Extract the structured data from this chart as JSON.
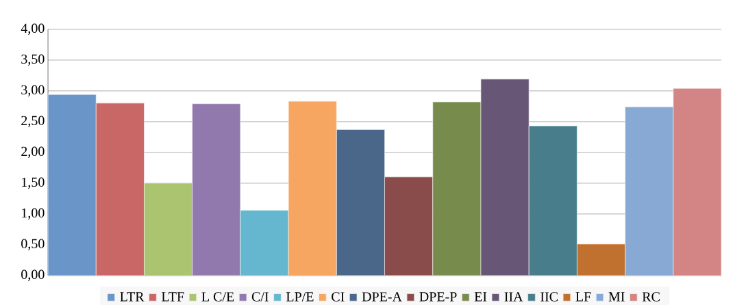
{
  "chart_data": {
    "type": "bar",
    "categories": [
      null
    ],
    "series": [
      {
        "name": "LTR",
        "color": "#6a95c8",
        "values": [
          2.94
        ]
      },
      {
        "name": "LTF",
        "color": "#c96767",
        "values": [
          2.8
        ]
      },
      {
        "name": "L C/E",
        "color": "#abc470",
        "values": [
          1.5
        ]
      },
      {
        "name": "C/I",
        "color": "#9279ad",
        "values": [
          2.79
        ]
      },
      {
        "name": "LP/E",
        "color": "#64b7cf",
        "values": [
          1.06
        ]
      },
      {
        "name": "CI",
        "color": "#f7a662",
        "values": [
          2.83
        ]
      },
      {
        "name": "DPE-A",
        "color": "#4a6689",
        "values": [
          2.37
        ]
      },
      {
        "name": "DPE-P",
        "color": "#8a4b4b",
        "values": [
          1.6
        ]
      },
      {
        "name": "EI",
        "color": "#778b4d",
        "values": [
          2.82
        ]
      },
      {
        "name": "IIA",
        "color": "#675676",
        "values": [
          3.19
        ]
      },
      {
        "name": "IIC",
        "color": "#487e8b",
        "values": [
          2.43
        ]
      },
      {
        "name": "LF",
        "color": "#c0702f",
        "values": [
          0.51
        ]
      },
      {
        "name": "MI",
        "color": "#88a9d3",
        "values": [
          2.74
        ]
      },
      {
        "name": "RC",
        "color": "#d38585",
        "values": [
          3.04
        ]
      }
    ],
    "ylim": [
      0,
      4
    ],
    "yticks": [
      {
        "value": 0,
        "label": "0,00"
      },
      {
        "value": 0.5,
        "label": "0,50"
      },
      {
        "value": 1,
        "label": "1,00"
      },
      {
        "value": 1.5,
        "label": "1,50"
      },
      {
        "value": 2,
        "label": "2,00"
      },
      {
        "value": 2.5,
        "label": "2,50"
      },
      {
        "value": 3,
        "label": "3,00"
      },
      {
        "value": 3.5,
        "label": "3,50"
      },
      {
        "value": 4,
        "label": "4,00"
      }
    ],
    "grid": "y",
    "legend": "bottom"
  }
}
